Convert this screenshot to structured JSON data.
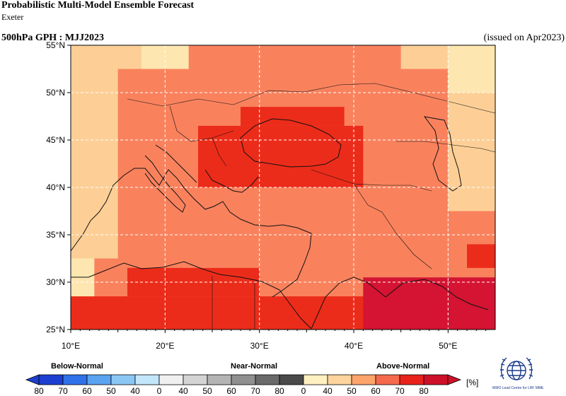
{
  "header": {
    "title": "Probabilistic Multi-Model Ensemble Forecast",
    "subtitle": "Exeter",
    "variable_title": "500hPa GPH : MJJ2023",
    "issued": "(issued on Apr2023)"
  },
  "map": {
    "lon_range": [
      10,
      55
    ],
    "lat_range": [
      25,
      55
    ],
    "lat_labels": [
      "25°N",
      "30°N",
      "35°N",
      "40°N",
      "45°N",
      "50°N",
      "55°N"
    ],
    "lon_labels": [
      "10°E",
      "20°E",
      "30°E",
      "40°E",
      "50°E"
    ],
    "grid_cell_deg": 2.5,
    "regions": [
      {
        "category": "above",
        "level": "40-50",
        "lon": [
          10,
          55
        ],
        "lat": [
          25,
          55
        ]
      },
      {
        "category": "above",
        "level": "50-60",
        "lon": [
          45,
          55
        ],
        "lat": [
          35,
          55
        ]
      },
      {
        "category": "above",
        "level": "50-60",
        "lon": [
          37.5,
          55
        ],
        "lat": [
          32.5,
          37.5
        ]
      },
      {
        "category": "above",
        "level": "50-60",
        "lon": [
          10,
          17.5
        ],
        "lat": [
          32.5,
          55
        ]
      },
      {
        "category": "above",
        "level": "40-50",
        "lon": [
          50,
          55
        ],
        "lat": [
          50,
          55
        ]
      },
      {
        "category": "above",
        "level": "60-70",
        "lon": [
          15,
          50
        ],
        "lat": [
          32.5,
          52.5
        ]
      },
      {
        "category": "above",
        "level": "60-70",
        "lon": [
          22.5,
          45
        ],
        "lat": [
          52.5,
          55
        ]
      },
      {
        "category": "above",
        "level": "60-70",
        "lon": [
          12.5,
          50
        ],
        "lat": [
          27.5,
          32.5
        ]
      },
      {
        "category": "above",
        "level": "60-70",
        "lon": [
          50,
          55
        ],
        "lat": [
          30,
          37.5
        ]
      },
      {
        "category": "above",
        "level": "70-80",
        "lon": [
          23.5,
          41
        ],
        "lat": [
          40,
          46.5
        ]
      },
      {
        "category": "above",
        "level": "70-80",
        "lon": [
          28,
          39
        ],
        "lat": [
          46.5,
          48.5
        ]
      },
      {
        "category": "above",
        "level": "70-80",
        "lon": [
          10,
          55
        ],
        "lat": [
          25,
          28.5
        ]
      },
      {
        "category": "above",
        "level": "70-80",
        "lon": [
          16,
          30
        ],
        "lat": [
          28.5,
          31.5
        ]
      },
      {
        "category": "above",
        "level": "70-80",
        "lon": [
          52,
          55
        ],
        "lat": [
          31.5,
          34
        ]
      },
      {
        "category": "above",
        "level": "80-100",
        "lon": [
          41,
          55
        ],
        "lat": [
          25,
          30.5
        ]
      }
    ]
  },
  "legend": {
    "below_label": "Below-Normal",
    "near_label": "Near-Normal",
    "above_label": "Above-Normal",
    "unit": "[%]",
    "below_ticks": [
      "80",
      "70",
      "60",
      "50",
      "40"
    ],
    "near_ticks": [
      "0",
      "40",
      "50",
      "60",
      "70",
      "80"
    ],
    "above_ticks": [
      "0",
      "40",
      "50",
      "60",
      "70",
      "80"
    ],
    "below_colors": [
      "#1c3fd0",
      "#2f72e8",
      "#5aa3f0",
      "#8bc7f5",
      "#c2e6fa"
    ],
    "near_colors": [
      "#f0f0f0",
      "#d4d4d4",
      "#b4b4b4",
      "#909090",
      "#6a6a6a",
      "#4a4a4a"
    ],
    "above_colors": [
      "#fff0c0",
      "#fdd49e",
      "#fca46a",
      "#f46a4b",
      "#e8221a",
      "#cc1128"
    ]
  },
  "logo": {
    "name": "wmo-logo",
    "caption": "WMO Lead Centre for LRF MME"
  },
  "colors": {
    "above_40_50": "#fde6b0",
    "above_50_60": "#fdcf96",
    "above_60_70": "#f9825d",
    "above_70_80": "#ec2c1a",
    "above_80_100": "#d41432",
    "coast": "#111111",
    "grid": "#ffffff"
  }
}
